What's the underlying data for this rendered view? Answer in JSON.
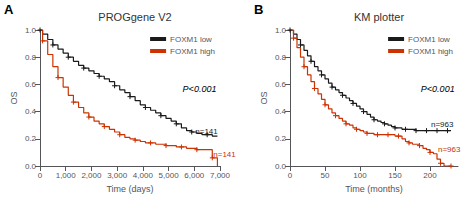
{
  "chart_data": [
    {
      "type": "line",
      "line_style": "step",
      "title": "PROGgene V2",
      "panel_label": "A",
      "xlabel": "Time (days)",
      "ylabel": "OS",
      "xlim": [
        0,
        7000
      ],
      "xticks": [
        0,
        {
          "value": 1000,
          "label": "1,000"
        },
        {
          "value": 2000,
          "label": "2,000"
        },
        {
          "value": 3000,
          "label": "3,000"
        },
        {
          "value": 4000,
          "label": "4,000"
        },
        {
          "value": 5000,
          "label": "5,000"
        },
        {
          "value": 6000,
          "label": "6,000"
        },
        {
          "value": 7000,
          "label": "7,000"
        }
      ],
      "ylim": [
        0,
        1.0
      ],
      "yticks": [
        {
          "value": 0.0,
          "label": "0.0"
        },
        0.2,
        0.4,
        0.6,
        0.8,
        {
          "value": 1.0,
          "label": "1.0"
        }
      ],
      "grid": false,
      "legend": "upper right",
      "x": [
        0,
        100,
        300,
        500,
        700,
        900,
        1100,
        1300,
        1500,
        1700,
        1900,
        2100,
        2300,
        2500,
        2700,
        2900,
        3100,
        3300,
        3500,
        3700,
        3900,
        4100,
        4300,
        4500,
        4700,
        4900,
        5100,
        5300,
        5500,
        5700,
        5900,
        6100,
        6300,
        6500,
        6700,
        6900
      ],
      "series": [
        {
          "name": "FOXM1 low",
          "color": "#1a1a1a",
          "marker": "plus",
          "values": [
            1.0,
            0.97,
            0.93,
            0.89,
            0.86,
            0.83,
            0.8,
            0.77,
            0.74,
            0.72,
            0.7,
            0.68,
            0.66,
            0.64,
            0.62,
            0.59,
            0.56,
            0.54,
            0.51,
            0.48,
            0.45,
            0.43,
            0.41,
            0.39,
            0.37,
            0.35,
            0.33,
            0.31,
            0.28,
            0.26,
            0.25,
            0.24,
            0.23,
            0.23,
            0.22,
            0.22
          ]
        },
        {
          "name": "FOXM1 high",
          "color": "#cc3300",
          "marker": "plus",
          "values": [
            1.0,
            0.92,
            0.82,
            0.73,
            0.65,
            0.58,
            0.52,
            0.47,
            0.43,
            0.39,
            0.36,
            0.33,
            0.31,
            0.29,
            0.27,
            0.25,
            0.23,
            0.21,
            0.2,
            0.19,
            0.18,
            0.17,
            0.17,
            0.16,
            0.16,
            0.15,
            0.15,
            0.14,
            0.14,
            0.13,
            0.13,
            0.12,
            0.12,
            0.12,
            0.06,
            0.0
          ]
        }
      ],
      "annotations": [
        {
          "text": "n=141",
          "x": 6000,
          "y": 0.22,
          "color": "#1a1a1a"
        },
        {
          "text": "n=141",
          "x": 6700,
          "y": 0.12,
          "color": "#cc3300"
        },
        {
          "text": "P<0.001"
        }
      ]
    },
    {
      "type": "line",
      "line_style": "step",
      "title": "KM plotter",
      "panel_label": "B",
      "xlabel": "Time (months)",
      "ylabel": "OS",
      "xlim": [
        0,
        240
      ],
      "xticks": [
        0,
        50,
        100,
        150,
        200
      ],
      "ylim": [
        0,
        1.0
      ],
      "yticks": [
        {
          "value": 0.0,
          "label": "0.0"
        },
        0.2,
        0.4,
        0.6,
        0.8,
        {
          "value": 1.0,
          "label": "1.0"
        }
      ],
      "grid": false,
      "legend": "upper right",
      "x": [
        0,
        5,
        10,
        15,
        20,
        25,
        30,
        35,
        40,
        45,
        50,
        55,
        60,
        65,
        70,
        75,
        80,
        85,
        90,
        95,
        100,
        105,
        110,
        115,
        120,
        125,
        130,
        135,
        140,
        145,
        150,
        155,
        160,
        165,
        170,
        175,
        180,
        185,
        190,
        195,
        200,
        205,
        210,
        215,
        220,
        225,
        230
      ],
      "series": [
        {
          "name": "FOXM1 low",
          "color": "#1a1a1a",
          "marker": "plus",
          "values": [
            1.0,
            0.97,
            0.93,
            0.89,
            0.85,
            0.81,
            0.77,
            0.73,
            0.7,
            0.67,
            0.64,
            0.61,
            0.58,
            0.56,
            0.54,
            0.52,
            0.5,
            0.48,
            0.46,
            0.44,
            0.42,
            0.4,
            0.38,
            0.36,
            0.34,
            0.33,
            0.32,
            0.31,
            0.3,
            0.29,
            0.28,
            0.28,
            0.27,
            0.27,
            0.27,
            0.27,
            0.26,
            0.26,
            0.26,
            0.26,
            0.26,
            0.26,
            0.26,
            0.26,
            0.26,
            0.26,
            0.26
          ]
        },
        {
          "name": "FOXM1 high",
          "color": "#cc3300",
          "marker": "plus",
          "values": [
            1.0,
            0.94,
            0.87,
            0.8,
            0.73,
            0.67,
            0.62,
            0.57,
            0.53,
            0.49,
            0.45,
            0.42,
            0.39,
            0.37,
            0.35,
            0.33,
            0.31,
            0.3,
            0.28,
            0.27,
            0.26,
            0.25,
            0.24,
            0.24,
            0.23,
            0.23,
            0.23,
            0.23,
            0.23,
            0.23,
            0.22,
            0.22,
            0.2,
            0.18,
            0.17,
            0.16,
            0.16,
            0.15,
            0.13,
            0.12,
            0.1,
            0.09,
            0.05,
            0.02,
            0.0,
            0.0,
            0.0
          ]
        }
      ],
      "annotations": [
        {
          "text": "n=963",
          "x": 200,
          "y": 0.265,
          "color": "#1a1a1a"
        },
        {
          "text": "n=963",
          "x": 210,
          "y": 0.16,
          "color": "#cc3300"
        },
        {
          "text": "P<0.001"
        }
      ]
    }
  ]
}
